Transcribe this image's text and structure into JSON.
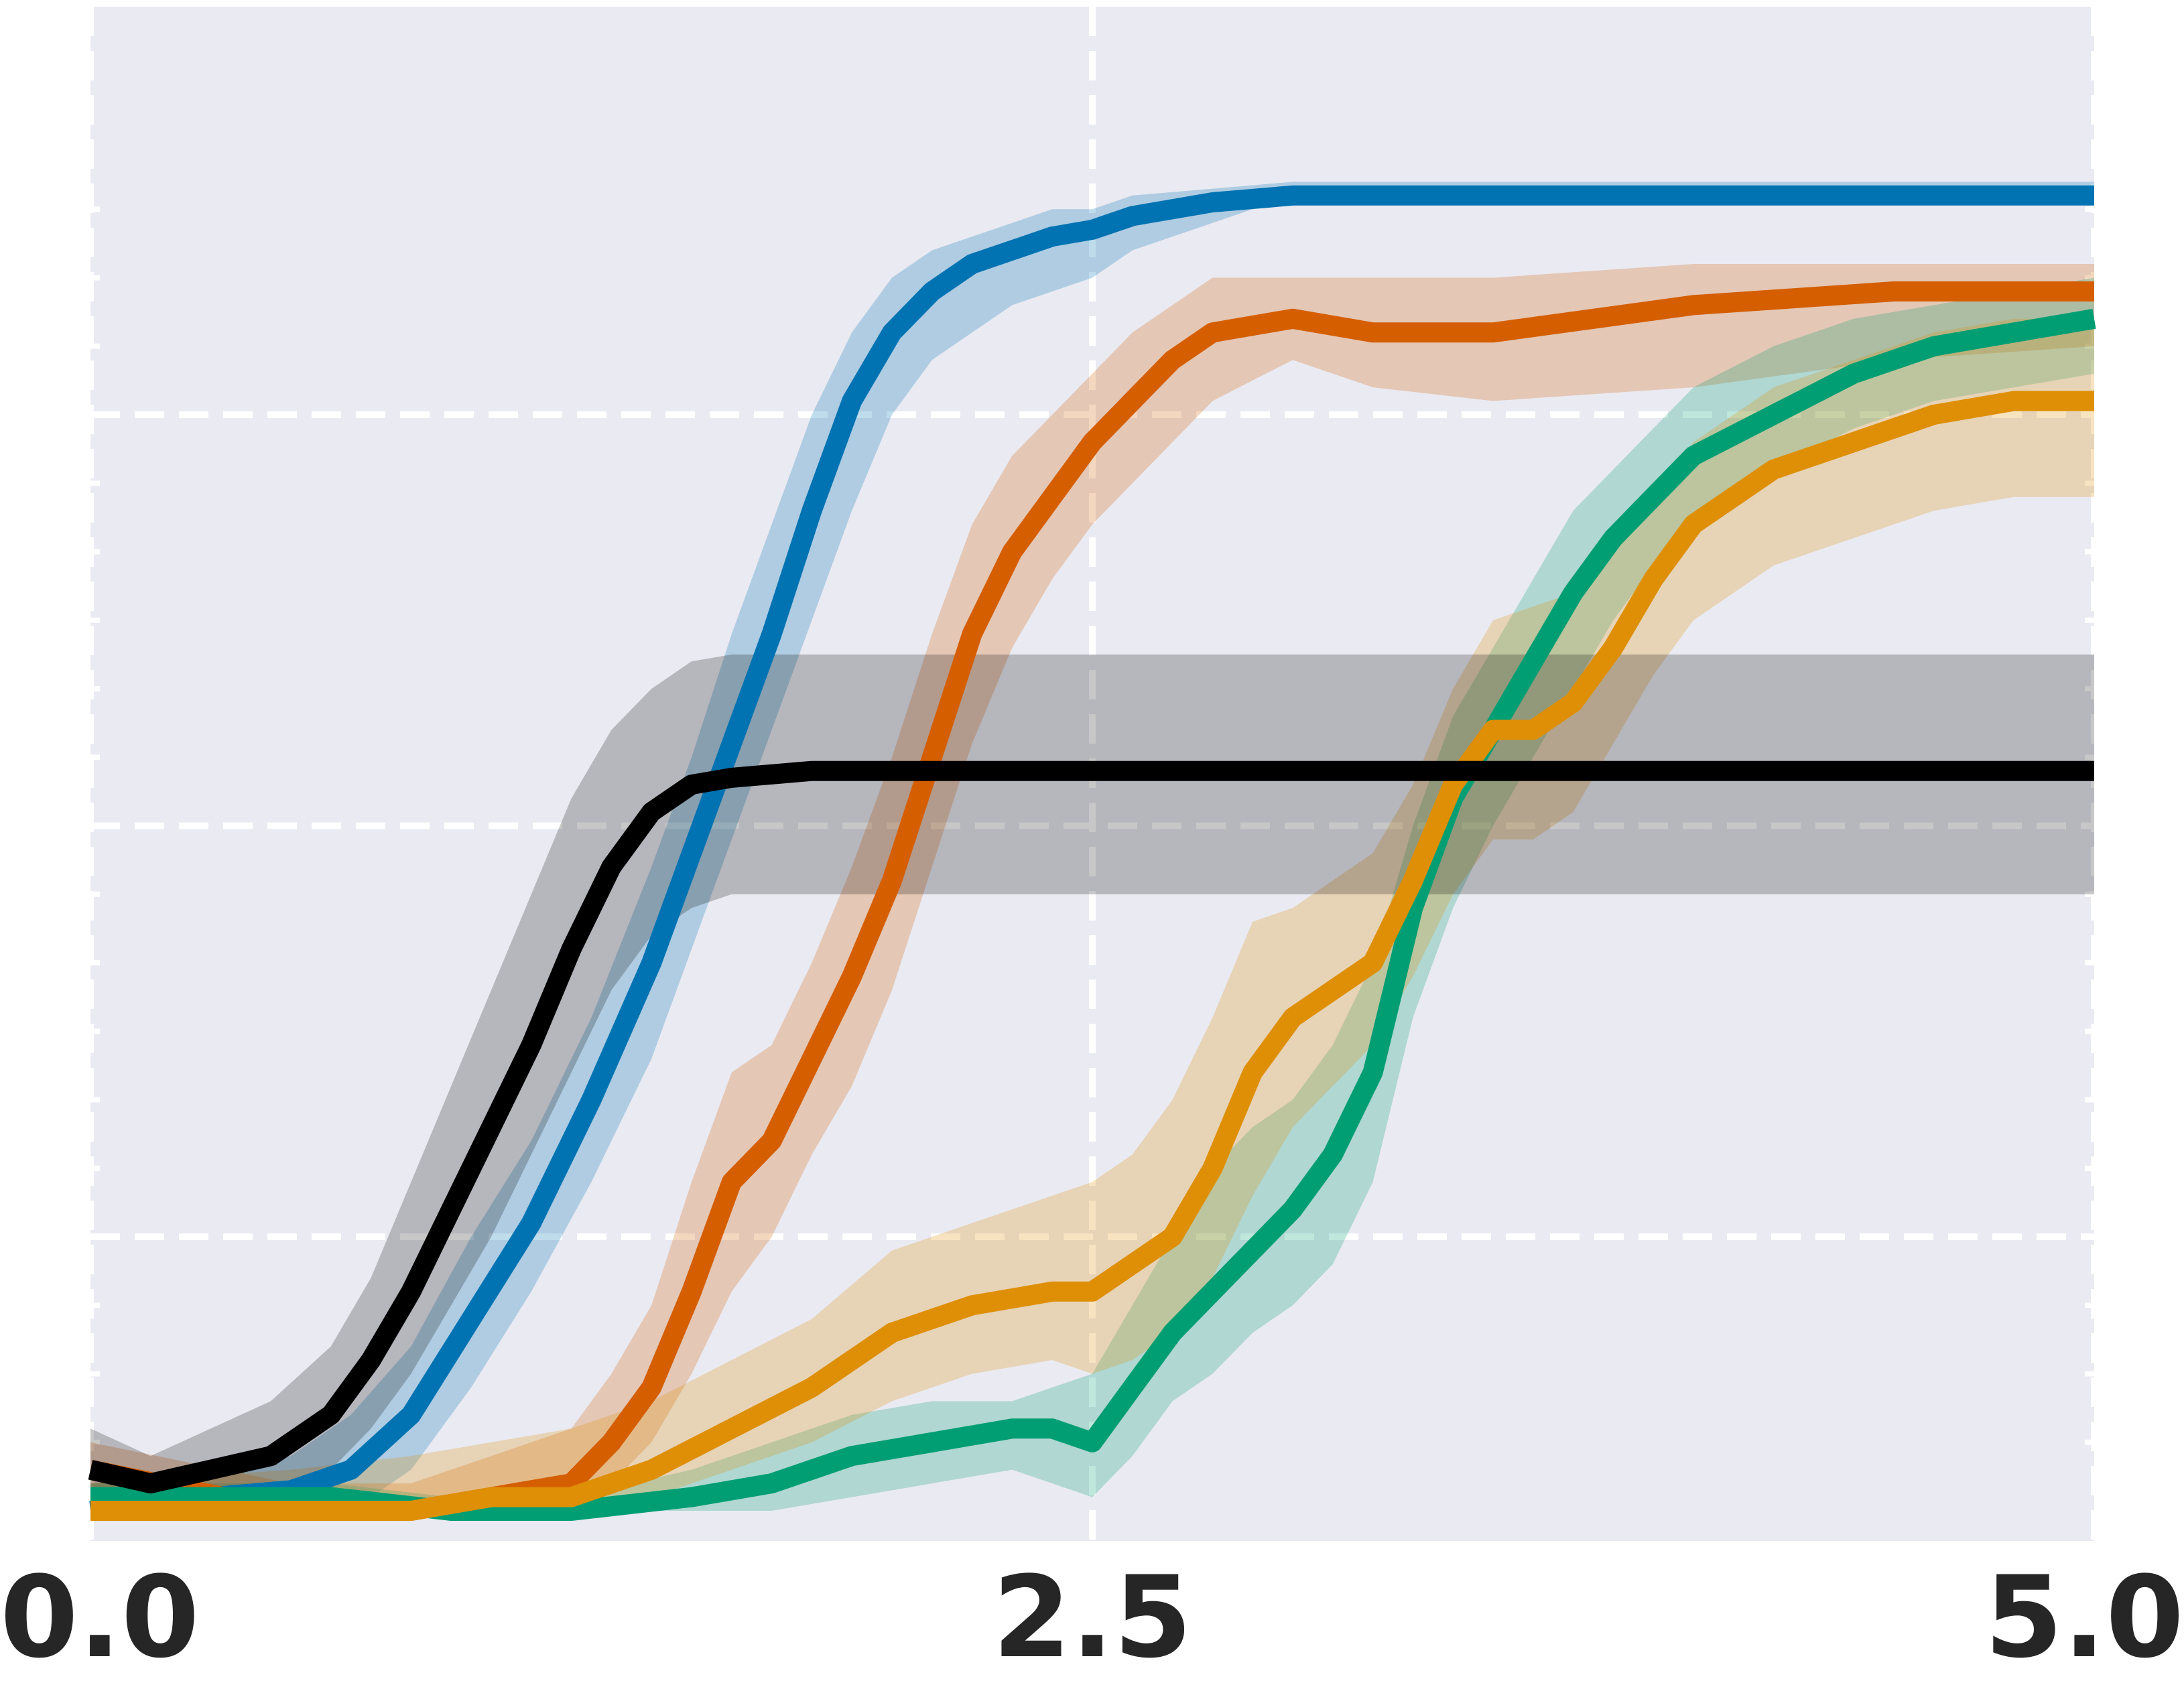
{
  "chart_data": {
    "type": "line",
    "title": "",
    "xlabel": "",
    "ylabel": "",
    "xlim": [
      0.0,
      5.0
    ],
    "ylim": [
      0.0,
      1.0
    ],
    "x_ticks": [
      0.0,
      2.5,
      5.0
    ],
    "x_tick_labels": [
      "0.0",
      "2.5",
      "5.0"
    ],
    "y_gridlines": [
      0.2,
      0.5,
      0.8
    ],
    "grid": true,
    "legend": "none",
    "background_color": "#eaeaf2",
    "grid_color": "#ffffff",
    "series": [
      {
        "color": "#0173b2",
        "x": [
          0.0,
          0.3,
          0.5,
          0.65,
          0.8,
          0.95,
          1.1,
          1.25,
          1.4,
          1.5,
          1.6,
          1.7,
          1.8,
          1.9,
          2.0,
          2.1,
          2.2,
          2.3,
          2.4,
          2.5,
          2.6,
          2.8,
          3.0,
          5.0
        ],
        "y": [
          0.0,
          0.01,
          0.015,
          0.03,
          0.07,
          0.14,
          0.21,
          0.3,
          0.4,
          0.48,
          0.56,
          0.64,
          0.73,
          0.81,
          0.86,
          0.89,
          0.91,
          0.92,
          0.93,
          0.935,
          0.945,
          0.955,
          0.96,
          0.96
        ]
      },
      {
        "color": "#d55e00",
        "x": [
          0.0,
          0.5,
          0.8,
          1.0,
          1.2,
          1.3,
          1.4,
          1.5,
          1.6,
          1.7,
          1.8,
          1.9,
          2.0,
          2.1,
          2.2,
          2.3,
          2.4,
          2.5,
          2.6,
          2.7,
          2.8,
          3.0,
          3.2,
          3.5,
          4.0,
          4.5,
          5.0
        ],
        "y": [
          0.03,
          0.0,
          0.0,
          0.01,
          0.02,
          0.05,
          0.09,
          0.16,
          0.24,
          0.27,
          0.33,
          0.39,
          0.46,
          0.55,
          0.64,
          0.7,
          0.74,
          0.78,
          0.81,
          0.84,
          0.86,
          0.87,
          0.86,
          0.86,
          0.88,
          0.89,
          0.89
        ]
      },
      {
        "color": "#029e73",
        "x": [
          0.0,
          0.3,
          0.6,
          0.9,
          1.2,
          1.5,
          1.7,
          1.9,
          2.1,
          2.3,
          2.4,
          2.5,
          2.6,
          2.7,
          2.8,
          2.9,
          3.0,
          3.1,
          3.2,
          3.3,
          3.4,
          3.5,
          3.6,
          3.7,
          3.8,
          3.9,
          4.0,
          4.2,
          4.4,
          4.6,
          4.8,
          5.0
        ],
        "y": [
          0.01,
          0.01,
          0.01,
          0.0,
          0.0,
          0.01,
          0.02,
          0.04,
          0.05,
          0.06,
          0.06,
          0.05,
          0.09,
          0.13,
          0.16,
          0.19,
          0.22,
          0.26,
          0.32,
          0.44,
          0.52,
          0.57,
          0.62,
          0.67,
          0.71,
          0.74,
          0.77,
          0.8,
          0.83,
          0.85,
          0.86,
          0.87
        ]
      },
      {
        "color": "#de8f05",
        "x": [
          0.0,
          0.5,
          0.8,
          1.0,
          1.2,
          1.4,
          1.6,
          1.8,
          2.0,
          2.2,
          2.4,
          2.5,
          2.6,
          2.7,
          2.8,
          2.9,
          3.0,
          3.1,
          3.2,
          3.3,
          3.4,
          3.5,
          3.6,
          3.7,
          3.8,
          3.9,
          4.0,
          4.2,
          4.4,
          4.6,
          4.8,
          5.0
        ],
        "y": [
          0.0,
          0.0,
          0.0,
          0.01,
          0.01,
          0.03,
          0.06,
          0.09,
          0.13,
          0.15,
          0.16,
          0.16,
          0.18,
          0.2,
          0.25,
          0.32,
          0.36,
          0.38,
          0.4,
          0.46,
          0.53,
          0.57,
          0.57,
          0.59,
          0.63,
          0.68,
          0.72,
          0.76,
          0.78,
          0.8,
          0.81,
          0.81
        ]
      },
      {
        "color": "#000000",
        "x": [
          0.0,
          0.15,
          0.3,
          0.45,
          0.6,
          0.7,
          0.8,
          0.9,
          1.0,
          1.1,
          1.2,
          1.3,
          1.4,
          1.5,
          1.6,
          1.8,
          2.0,
          5.0
        ],
        "y": [
          0.03,
          0.02,
          0.03,
          0.04,
          0.07,
          0.11,
          0.16,
          0.22,
          0.28,
          0.34,
          0.41,
          0.47,
          0.51,
          0.53,
          0.535,
          0.54,
          0.54,
          0.54
        ]
      }
    ],
    "bands": [
      {
        "color": "#0173b2",
        "x": [
          0.0,
          0.3,
          0.5,
          0.65,
          0.8,
          0.95,
          1.1,
          1.25,
          1.4,
          1.5,
          1.6,
          1.7,
          1.8,
          1.9,
          2.0,
          2.1,
          2.2,
          2.3,
          2.4,
          2.5,
          2.6,
          2.8,
          3.0,
          5.0
        ],
        "lower": [
          0.0,
          0.0,
          0.0,
          0.0,
          0.03,
          0.09,
          0.16,
          0.24,
          0.33,
          0.41,
          0.49,
          0.57,
          0.65,
          0.73,
          0.8,
          0.84,
          0.86,
          0.88,
          0.89,
          0.9,
          0.92,
          0.94,
          0.96,
          0.96
        ],
        "upper": [
          0.02,
          0.03,
          0.04,
          0.07,
          0.12,
          0.2,
          0.27,
          0.36,
          0.47,
          0.55,
          0.64,
          0.72,
          0.8,
          0.86,
          0.9,
          0.92,
          0.93,
          0.94,
          0.95,
          0.95,
          0.96,
          0.965,
          0.97,
          0.97
        ]
      },
      {
        "color": "#d55e00",
        "x": [
          0.0,
          0.5,
          0.8,
          1.0,
          1.2,
          1.3,
          1.4,
          1.5,
          1.6,
          1.7,
          1.8,
          1.9,
          2.0,
          2.1,
          2.2,
          2.3,
          2.4,
          2.5,
          2.6,
          2.7,
          2.8,
          3.0,
          3.2,
          3.5,
          4.0,
          4.5,
          5.0
        ],
        "lower": [
          0.0,
          0.0,
          0.0,
          0.0,
          0.0,
          0.02,
          0.05,
          0.1,
          0.16,
          0.2,
          0.26,
          0.31,
          0.38,
          0.47,
          0.56,
          0.63,
          0.68,
          0.72,
          0.75,
          0.78,
          0.81,
          0.84,
          0.82,
          0.81,
          0.82,
          0.84,
          0.85
        ],
        "upper": [
          0.05,
          0.02,
          0.02,
          0.04,
          0.06,
          0.1,
          0.15,
          0.24,
          0.32,
          0.34,
          0.4,
          0.47,
          0.55,
          0.64,
          0.72,
          0.77,
          0.8,
          0.83,
          0.86,
          0.88,
          0.9,
          0.9,
          0.9,
          0.9,
          0.91,
          0.91,
          0.91
        ]
      },
      {
        "color": "#029e73",
        "x": [
          0.0,
          0.3,
          0.6,
          0.9,
          1.2,
          1.5,
          1.7,
          1.9,
          2.1,
          2.3,
          2.4,
          2.5,
          2.6,
          2.7,
          2.8,
          2.9,
          3.0,
          3.1,
          3.2,
          3.3,
          3.4,
          3.5,
          3.6,
          3.7,
          3.8,
          3.9,
          4.0,
          4.2,
          4.4,
          4.6,
          4.8,
          5.0
        ],
        "lower": [
          0.0,
          0.0,
          0.0,
          0.0,
          0.0,
          0.0,
          0.0,
          0.01,
          0.02,
          0.03,
          0.02,
          0.01,
          0.04,
          0.08,
          0.1,
          0.13,
          0.15,
          0.18,
          0.24,
          0.36,
          0.44,
          0.5,
          0.55,
          0.6,
          0.65,
          0.69,
          0.72,
          0.76,
          0.79,
          0.81,
          0.82,
          0.83
        ],
        "upper": [
          0.02,
          0.02,
          0.02,
          0.01,
          0.01,
          0.03,
          0.05,
          0.07,
          0.08,
          0.08,
          0.09,
          0.1,
          0.15,
          0.2,
          0.25,
          0.28,
          0.3,
          0.34,
          0.4,
          0.5,
          0.58,
          0.63,
          0.68,
          0.73,
          0.76,
          0.79,
          0.82,
          0.85,
          0.87,
          0.88,
          0.89,
          0.9
        ]
      },
      {
        "color": "#de8f05",
        "x": [
          0.0,
          0.5,
          0.8,
          1.0,
          1.2,
          1.4,
          1.6,
          1.8,
          2.0,
          2.2,
          2.4,
          2.5,
          2.6,
          2.7,
          2.8,
          2.9,
          3.0,
          3.1,
          3.2,
          3.3,
          3.4,
          3.5,
          3.6,
          3.7,
          3.8,
          3.9,
          4.0,
          4.2,
          4.4,
          4.6,
          4.8,
          5.0
        ],
        "lower": [
          0.0,
          0.0,
          0.0,
          0.0,
          0.0,
          0.01,
          0.03,
          0.05,
          0.08,
          0.1,
          0.11,
          0.1,
          0.11,
          0.13,
          0.17,
          0.23,
          0.28,
          0.31,
          0.34,
          0.39,
          0.45,
          0.49,
          0.49,
          0.51,
          0.56,
          0.61,
          0.65,
          0.69,
          0.71,
          0.73,
          0.74,
          0.74
        ],
        "upper": [
          0.02,
          0.03,
          0.04,
          0.05,
          0.06,
          0.08,
          0.11,
          0.14,
          0.19,
          0.21,
          0.23,
          0.24,
          0.26,
          0.3,
          0.36,
          0.43,
          0.44,
          0.46,
          0.48,
          0.53,
          0.6,
          0.65,
          0.66,
          0.67,
          0.7,
          0.74,
          0.78,
          0.82,
          0.84,
          0.86,
          0.87,
          0.87
        ]
      },
      {
        "color": "#000000",
        "x": [
          0.0,
          0.15,
          0.3,
          0.45,
          0.6,
          0.7,
          0.8,
          0.9,
          1.0,
          1.1,
          1.2,
          1.3,
          1.4,
          1.5,
          1.6,
          1.8,
          2.0,
          5.0
        ],
        "lower": [
          0.0,
          0.0,
          0.0,
          0.01,
          0.03,
          0.06,
          0.1,
          0.15,
          0.2,
          0.26,
          0.32,
          0.38,
          0.42,
          0.44,
          0.45,
          0.45,
          0.45,
          0.45
        ],
        "upper": [
          0.06,
          0.04,
          0.06,
          0.08,
          0.12,
          0.17,
          0.24,
          0.31,
          0.38,
          0.45,
          0.52,
          0.57,
          0.6,
          0.62,
          0.625,
          0.625,
          0.625,
          0.625
        ]
      }
    ]
  }
}
